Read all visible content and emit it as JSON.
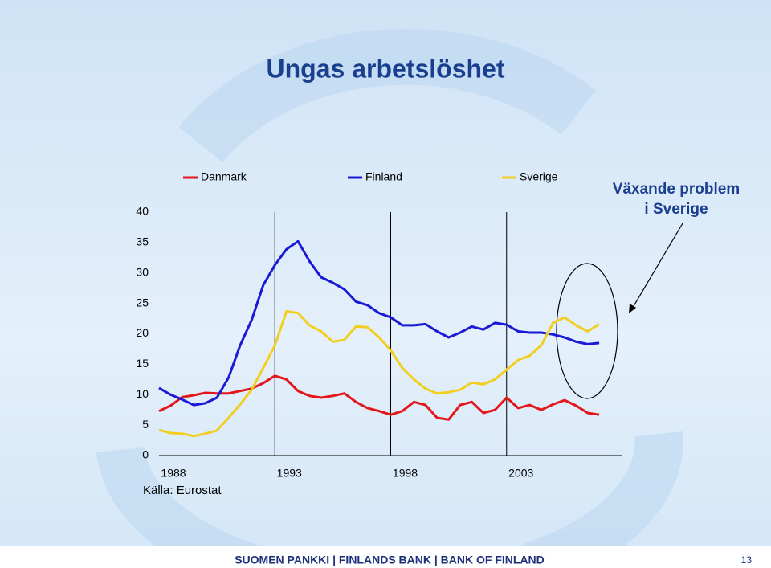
{
  "chart_data": {
    "type": "line",
    "title": "Ungas arbetslöshet",
    "annotation": [
      "Växande problem",
      "i Sverige"
    ],
    "source": "Källa: Eurostat",
    "footer": "SUOMEN PANKKI | FINLANDS BANK | BANK OF FINLAND",
    "page_number": "13",
    "x": [
      1988,
      1988.5,
      1989,
      1989.5,
      1990,
      1990.5,
      1991,
      1991.5,
      1992,
      1992.5,
      1993,
      1993.5,
      1994,
      1994.5,
      1995,
      1995.5,
      1996,
      1996.5,
      1997,
      1997.5,
      1998,
      1998.5,
      1999,
      1999.5,
      2000,
      2000.5,
      2001,
      2001.5,
      2002,
      2002.5,
      2003,
      2003.5,
      2004,
      2004.5,
      2005,
      2005.5,
      2006,
      2006.5,
      2007
    ],
    "xlim": [
      1988,
      2008
    ],
    "xticks": [
      1988,
      1993,
      1998,
      2003
    ],
    "ylim": [
      0,
      40
    ],
    "yticks": [
      0,
      5,
      10,
      15,
      20,
      25,
      30,
      35,
      40
    ],
    "legend": "top",
    "series": [
      {
        "name": "Danmark",
        "color": "#e3161b",
        "values": [
          7.3,
          8.2,
          9.6,
          9.9,
          10.3,
          10.2,
          10.2,
          10.6,
          11.0,
          11.9,
          13.1,
          12.5,
          10.6,
          9.8,
          9.5,
          9.8,
          10.2,
          8.8,
          7.8,
          7.3,
          6.7,
          7.3,
          8.8,
          8.3,
          6.2,
          5.9,
          8.3,
          8.8,
          7.0,
          7.5,
          9.5,
          7.8,
          8.3,
          7.5,
          8.4,
          9.1,
          8.2,
          7.0,
          6.7
        ]
      },
      {
        "name": "Finland",
        "color": "#1a1ad6",
        "values": [
          11.1,
          10.0,
          9.2,
          8.3,
          8.6,
          9.5,
          12.8,
          18.1,
          22.3,
          28.0,
          31.3,
          33.9,
          35.2,
          31.9,
          29.3,
          28.4,
          27.3,
          25.3,
          24.7,
          23.4,
          22.7,
          21.4,
          21.4,
          21.6,
          20.4,
          19.4,
          20.2,
          21.2,
          20.7,
          21.8,
          21.5,
          20.4,
          20.2,
          20.2,
          19.9,
          19.4,
          18.7,
          18.3,
          18.5
        ]
      },
      {
        "name": "Sverige",
        "color": "#f2cf1f",
        "values": [
          4.2,
          3.7,
          3.6,
          3.2,
          3.6,
          4.1,
          6.2,
          8.4,
          10.8,
          14.4,
          18.1,
          23.7,
          23.4,
          21.4,
          20.4,
          18.7,
          19.0,
          21.2,
          21.1,
          19.4,
          17.3,
          14.4,
          12.5,
          11.0,
          10.2,
          10.4,
          10.8,
          12.0,
          11.7,
          12.5,
          14.1,
          15.7,
          16.4,
          18.1,
          21.8,
          22.7,
          21.4,
          20.4,
          21.6
        ]
      }
    ]
  }
}
